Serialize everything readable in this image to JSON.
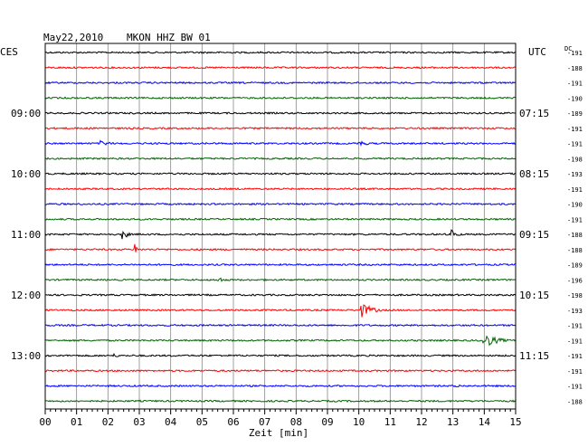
{
  "header": {
    "date": "May22,2010",
    "station": "MKON HHZ BW 01",
    "left_zone": "CES",
    "right_zone": "UTC",
    "dc_label": "DC"
  },
  "chart_data": {
    "type": "line",
    "title": "May22,2010   MKON HHZ BW 01",
    "xlabel": "Zeit [min]",
    "x_ticks": [
      "00",
      "01",
      "02",
      "03",
      "04",
      "05",
      "06",
      "07",
      "08",
      "09",
      "10",
      "11",
      "12",
      "13",
      "14",
      "15"
    ],
    "xlim": [
      0,
      15
    ],
    "line_minutes": 15,
    "trace_colors": [
      "#000000",
      "#ff0000",
      "#0000ff",
      "#006400"
    ],
    "grid": true,
    "traces": [
      {
        "dc": "-191",
        "events": []
      },
      {
        "dc": "-188",
        "events": []
      },
      {
        "dc": "-191",
        "events": []
      },
      {
        "dc": "-190",
        "events": []
      },
      {
        "dc": "-189",
        "events": []
      },
      {
        "dc": "-191",
        "events": []
      },
      {
        "dc": "-191",
        "events": [
          {
            "t": 1.8,
            "amp": 3,
            "dur": 1.0
          },
          {
            "t": 10.0,
            "amp": 3,
            "dur": 1.0
          }
        ]
      },
      {
        "dc": "-198",
        "events": []
      },
      {
        "dc": "-193",
        "events": []
      },
      {
        "dc": "-191",
        "events": []
      },
      {
        "dc": "-190",
        "events": []
      },
      {
        "dc": "-191",
        "events": []
      },
      {
        "dc": "-188",
        "events": [
          {
            "t": 2.5,
            "amp": 6,
            "dur": 0.4
          },
          {
            "t": 13.0,
            "amp": 5,
            "dur": 0.5
          }
        ]
      },
      {
        "dc": "-188",
        "events": [
          {
            "t": 2.9,
            "amp": 8,
            "dur": 0.1
          }
        ]
      },
      {
        "dc": "-189",
        "events": []
      },
      {
        "dc": "-196",
        "events": [
          {
            "t": 5.5,
            "amp": 4,
            "dur": 0.6
          }
        ]
      },
      {
        "dc": "-198",
        "events": []
      },
      {
        "dc": "-193",
        "events": [
          {
            "t": 10.1,
            "amp": 8,
            "dur": 1.0
          }
        ]
      },
      {
        "dc": "-191",
        "events": []
      },
      {
        "dc": "-191",
        "events": [
          {
            "t": 14.0,
            "amp": 8,
            "dur": 1.2
          }
        ]
      },
      {
        "dc": "-191",
        "events": [
          {
            "t": 2.2,
            "amp": 2,
            "dur": 0.8
          }
        ]
      },
      {
        "dc": "-191",
        "events": []
      },
      {
        "dc": "-191",
        "events": [
          {
            "t": 13.1,
            "amp": 3,
            "dur": 0.4
          }
        ]
      },
      {
        "dc": "-188",
        "events": []
      }
    ],
    "hour_labels": [
      {
        "row": 4,
        "local": "09:00",
        "utc": "07:15"
      },
      {
        "row": 8,
        "local": "10:00",
        "utc": "08:15"
      },
      {
        "row": 12,
        "local": "11:00",
        "utc": "09:15"
      },
      {
        "row": 16,
        "local": "12:00",
        "utc": "10:15"
      },
      {
        "row": 20,
        "local": "13:00",
        "utc": "11:15"
      }
    ]
  }
}
